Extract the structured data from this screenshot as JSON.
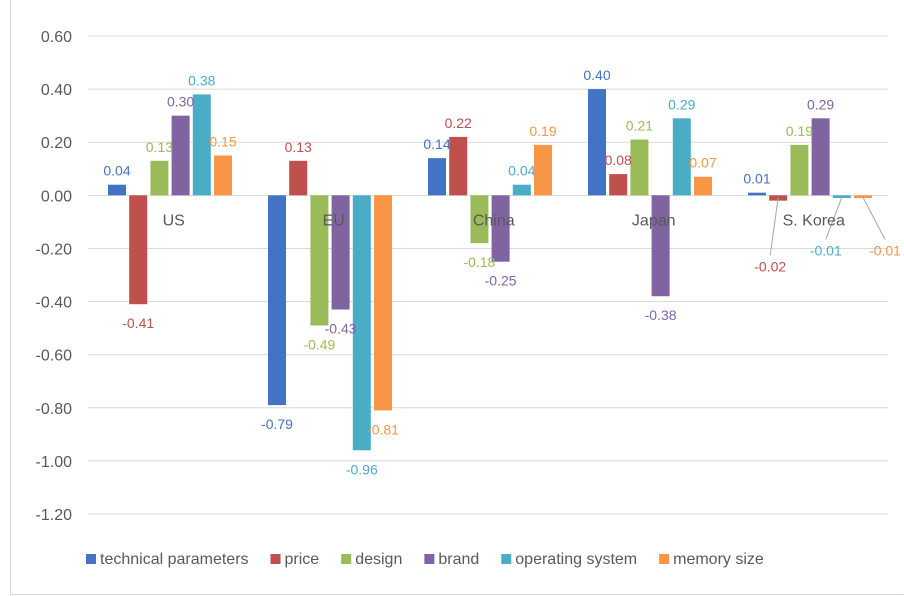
{
  "chart_data": {
    "type": "bar",
    "title": "",
    "xlabel": "",
    "ylabel": "",
    "ylim": [
      -1.2,
      0.6
    ],
    "yticks": [
      0.6,
      0.4,
      0.2,
      0.0,
      -0.2,
      -0.4,
      -0.6,
      -0.8,
      -1.0,
      -1.2
    ],
    "ytick_labels": [
      "0.60",
      "0.40",
      "0.20",
      "0.00",
      "-0.20",
      "-0.40",
      "-0.60",
      "-0.80",
      "-1.00",
      "-1.20"
    ],
    "grid": true,
    "legend_position": "bottom",
    "categories": [
      "US",
      "EU",
      "China",
      "Japan",
      "S. Korea"
    ],
    "series": [
      {
        "name": "technical parameters",
        "color": "#4472C4",
        "values": [
          0.04,
          -0.79,
          0.14,
          0.4,
          0.01
        ],
        "labels": [
          "0.04",
          "-0.79",
          "0.14",
          "0.40",
          "0.01"
        ]
      },
      {
        "name": "price",
        "color": "#C0504D",
        "values": [
          -0.41,
          0.13,
          0.22,
          0.08,
          -0.02
        ],
        "labels": [
          "-0.41",
          "0.13",
          "0.22",
          "0.08",
          "-0.02"
        ]
      },
      {
        "name": "design",
        "color": "#9BBB59",
        "values": [
          0.13,
          -0.49,
          -0.18,
          0.21,
          0.19
        ],
        "labels": [
          "0.13",
          "-0.49",
          "-0.18",
          "0.21",
          "0.19"
        ]
      },
      {
        "name": "brand",
        "color": "#8064A2",
        "values": [
          0.3,
          -0.43,
          -0.25,
          -0.38,
          0.29
        ],
        "labels": [
          "0.30",
          "-0.43",
          "-0.25",
          "-0.38",
          "0.29"
        ]
      },
      {
        "name": "operating system",
        "color": "#4BACC6",
        "values": [
          0.38,
          -0.96,
          0.04,
          0.29,
          -0.01
        ],
        "labels": [
          "0.38",
          "-0.96",
          "0.04",
          "0.29",
          "-0.01"
        ]
      },
      {
        "name": "memory size",
        "color": "#F79646",
        "values": [
          0.15,
          -0.81,
          0.19,
          0.07,
          -0.01
        ],
        "labels": [
          "0.15",
          "-0.81",
          "0.19",
          "0.07",
          "-0.01"
        ]
      }
    ]
  }
}
